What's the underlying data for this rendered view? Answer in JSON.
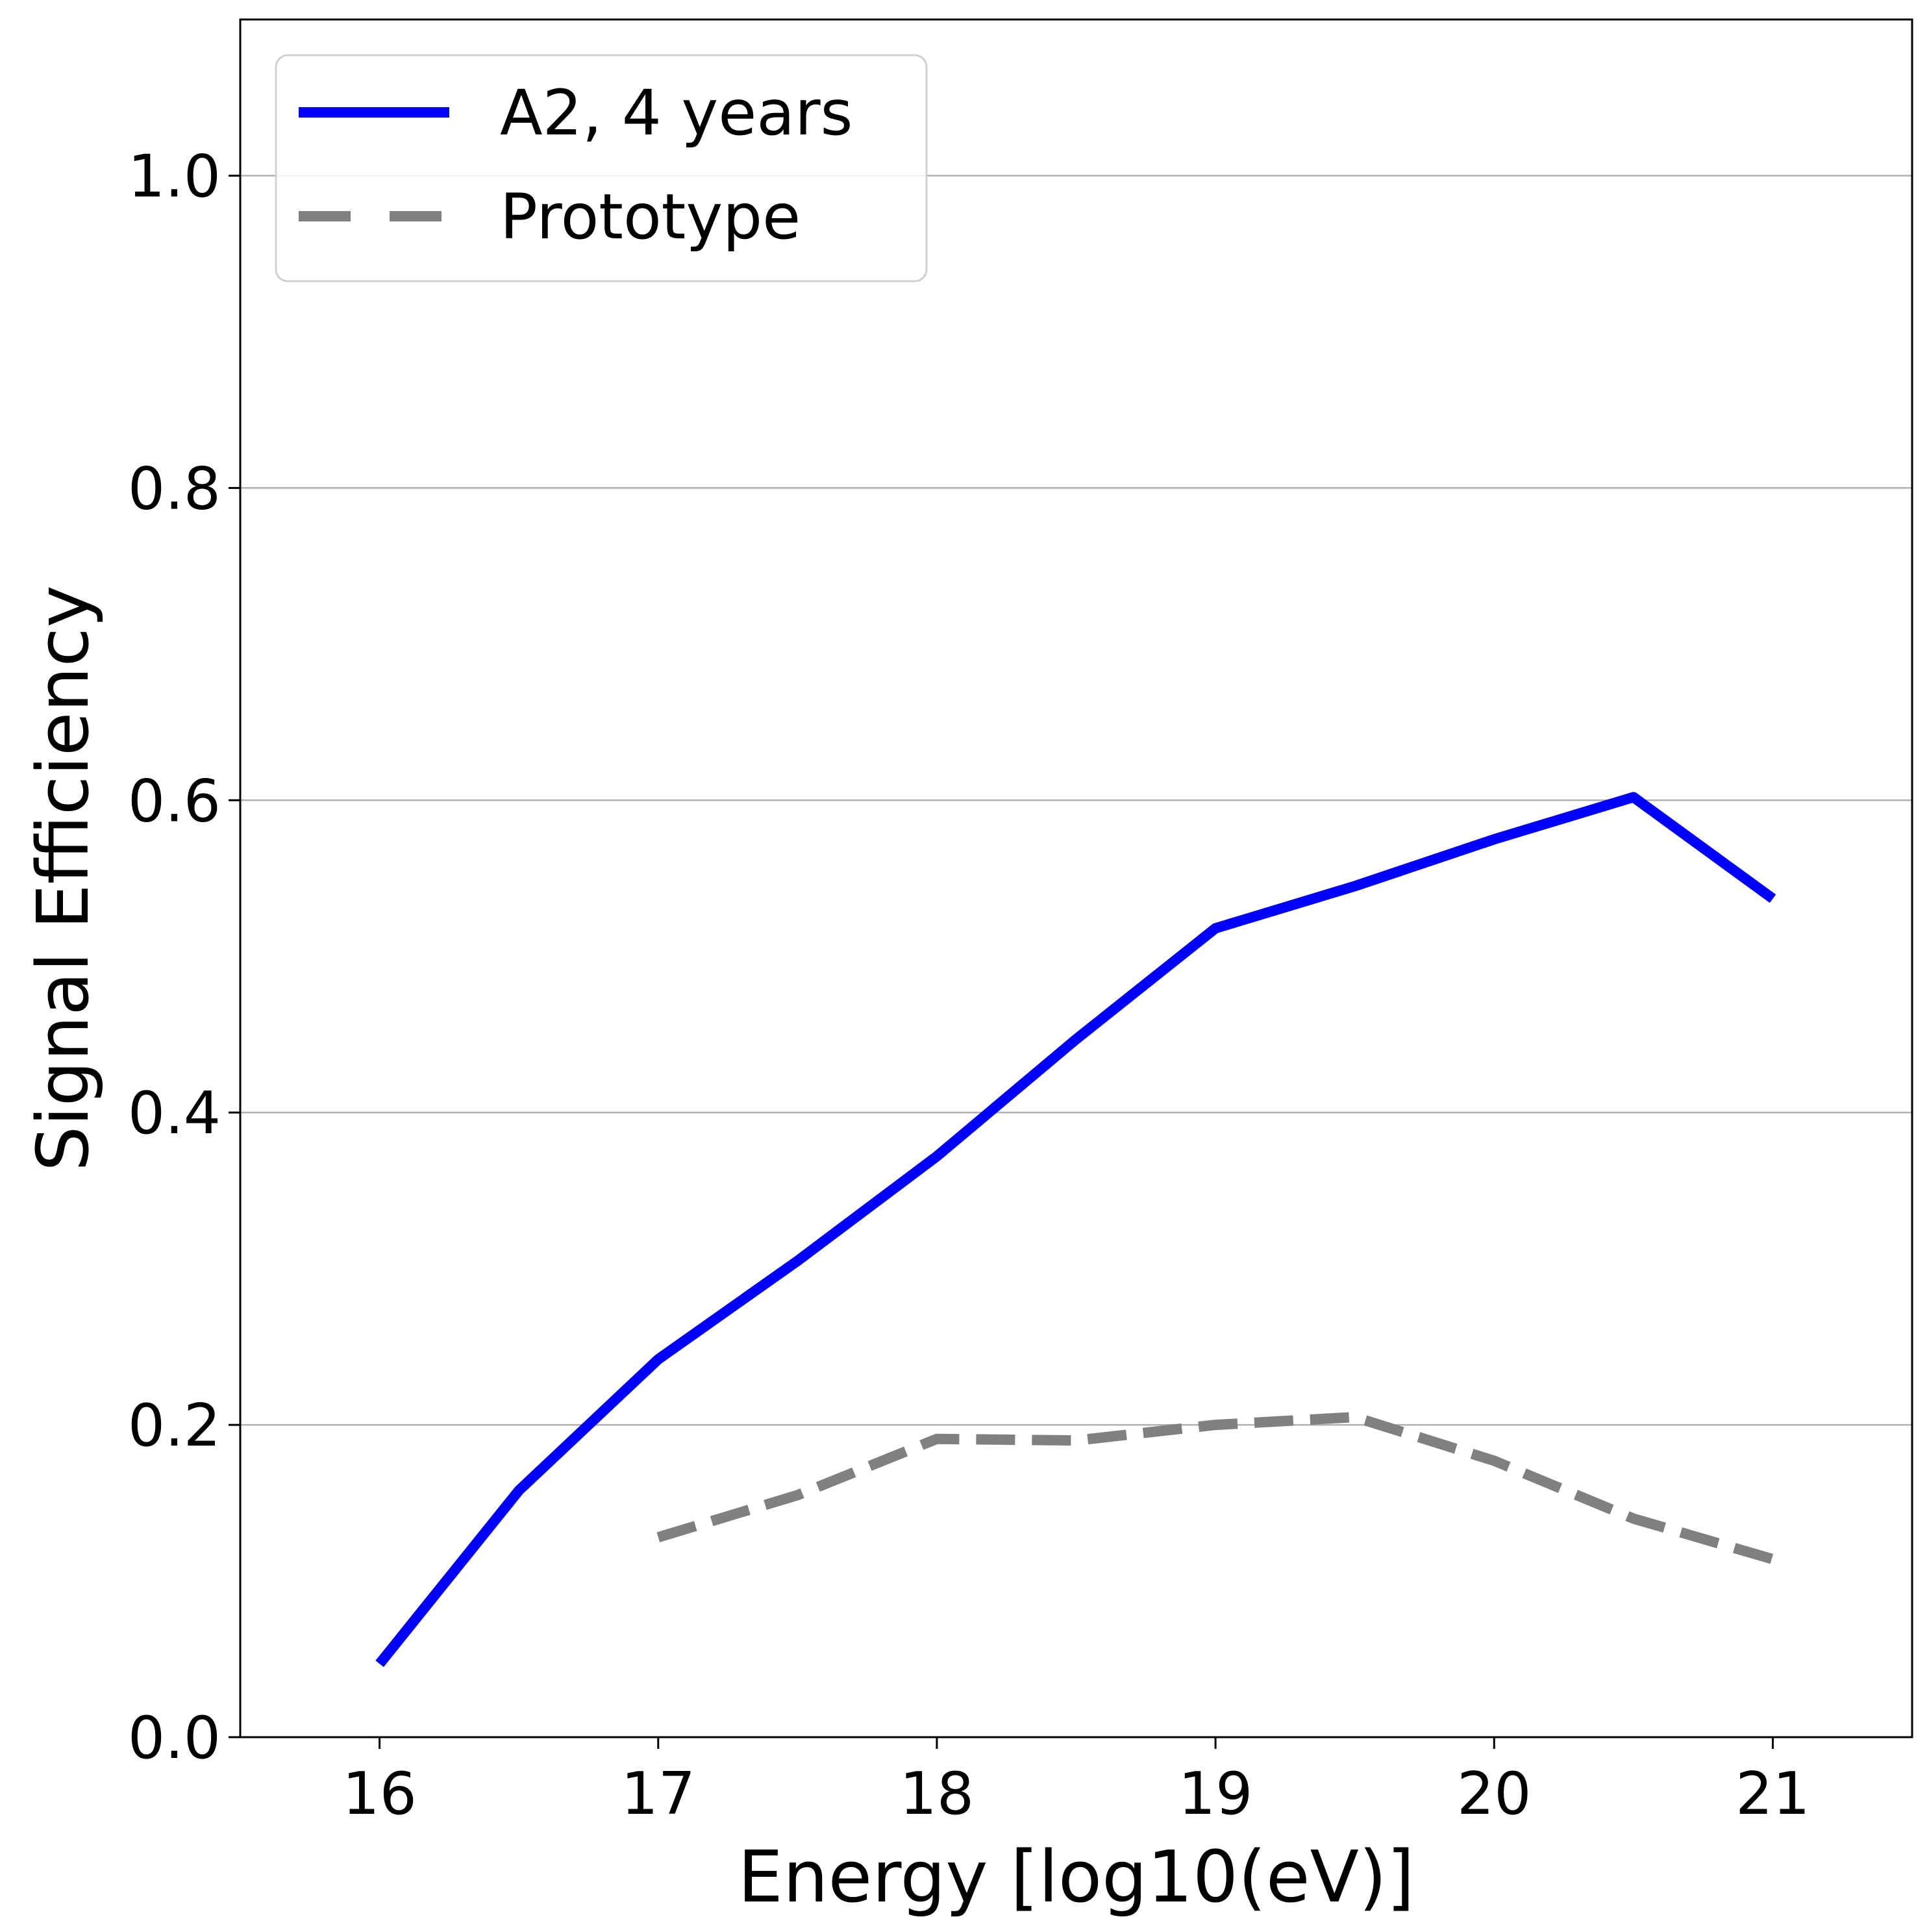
{
  "chart_data": {
    "type": "line",
    "title": "",
    "xlabel": "Energy [log10(eV)]",
    "ylabel": "Signal Efficiency",
    "xlim": [
      15.5,
      21.5
    ],
    "ylim": [
      0.0,
      1.1
    ],
    "xticks": [
      16,
      17,
      18,
      19,
      20,
      21
    ],
    "xtick_labels": [
      "16",
      "17",
      "18",
      "19",
      "20",
      "21"
    ],
    "yticks": [
      0.0,
      0.2,
      0.4,
      0.6,
      0.8,
      1.0
    ],
    "ytick_labels": [
      "0.0",
      "0.2",
      "0.4",
      "0.6",
      "0.8",
      "1.0"
    ],
    "grid": "horizontal",
    "legend_position": "top-left",
    "series": [
      {
        "name": "A2, 4 years",
        "color": "#0000ff",
        "style": "solid",
        "x": [
          16.0,
          16.5,
          17.0,
          17.5,
          18.0,
          18.5,
          19.0,
          19.5,
          20.0,
          20.5,
          21.0
        ],
        "y": [
          0.047,
          0.158,
          0.242,
          0.305,
          0.372,
          0.447,
          0.518,
          0.545,
          0.575,
          0.602,
          0.537
        ]
      },
      {
        "name": "Prototype",
        "color": "#808080",
        "style": "dashed",
        "x": [
          17.0,
          17.5,
          18.0,
          18.5,
          19.0,
          19.5,
          20.0,
          20.5,
          21.0
        ],
        "y": [
          0.128,
          0.155,
          0.191,
          0.19,
          0.2,
          0.205,
          0.177,
          0.14,
          0.114
        ]
      }
    ]
  }
}
